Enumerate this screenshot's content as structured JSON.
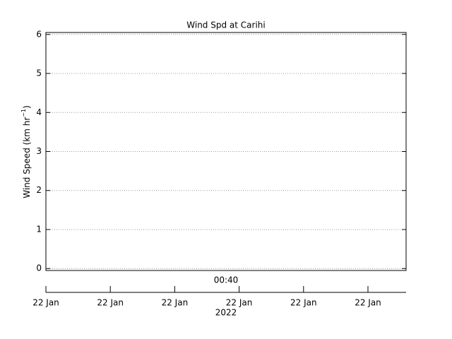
{
  "chart_data": {
    "type": "line",
    "title": "Wind Spd at Carihi",
    "y_label": [
      "Wind Speed (km hr",
      "−1",
      ")"
    ],
    "ylim": [
      -0.05,
      6.05
    ],
    "yticks": [
      0,
      1,
      2,
      3,
      4,
      5,
      6
    ],
    "grid": true,
    "x_label": "00:40",
    "categories": [
      "22 Jan",
      "22 Jan",
      "22 Jan",
      "22 Jan",
      "22 Jan",
      "22 Jan"
    ],
    "year": "2022",
    "series": []
  }
}
